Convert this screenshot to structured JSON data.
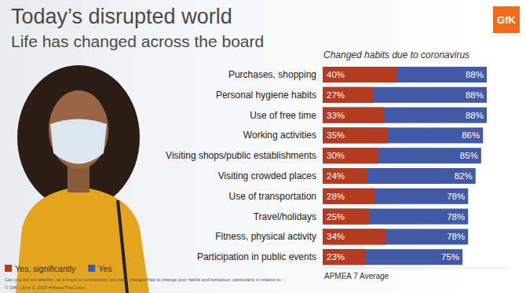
{
  "chart_data": {
    "type": "bar",
    "orientation": "horizontal",
    "stacked": false,
    "data_labels": true,
    "title": "Today’s disrupted world",
    "subtitle": "Life has changed across the board",
    "annotations": [
      "Changed habits due to coronavirus",
      "APMEA 7 Average",
      "Can you tell me whether, as a result of coronavirus, you have changed/had to change your habits and behaviour, particularly in relation to: ;",
      "© GfK | June 3, 2020   #MasterTheCrisis",
      "GfK"
    ],
    "categories": [
      "Purchases, shopping",
      "Personal hygiene habits",
      "Use of free time",
      "Working activities",
      "Visiting shops/public establishments",
      "Visiting crowded places",
      "Use of transportation",
      "Travel/holidays",
      "Fitness, physical activity",
      "Participation in public events"
    ],
    "series": [
      {
        "name": "Yes, significantly",
        "color": "#b33b1f",
        "values": [
          40,
          27,
          33,
          35,
          30,
          24,
          28,
          25,
          34,
          23
        ],
        "value_labels": [
          "40%",
          "27%",
          "33%",
          "35%",
          "30%",
          "24%",
          "28%",
          "25%",
          "34%",
          "23%"
        ]
      },
      {
        "name": "Yes",
        "color": "#4159a6",
        "values": [
          88,
          88,
          88,
          86,
          85,
          82,
          78,
          78,
          78,
          75
        ],
        "value_labels": [
          "88%",
          "88%",
          "88%",
          "86%",
          "85%",
          "82%",
          "78%",
          "78%",
          "78%",
          "75%"
        ]
      }
    ],
    "xlim": [
      0,
      100
    ],
    "xticks": [],
    "tick_labels": "y",
    "legend": "bottom left",
    "grid": false
  }
}
